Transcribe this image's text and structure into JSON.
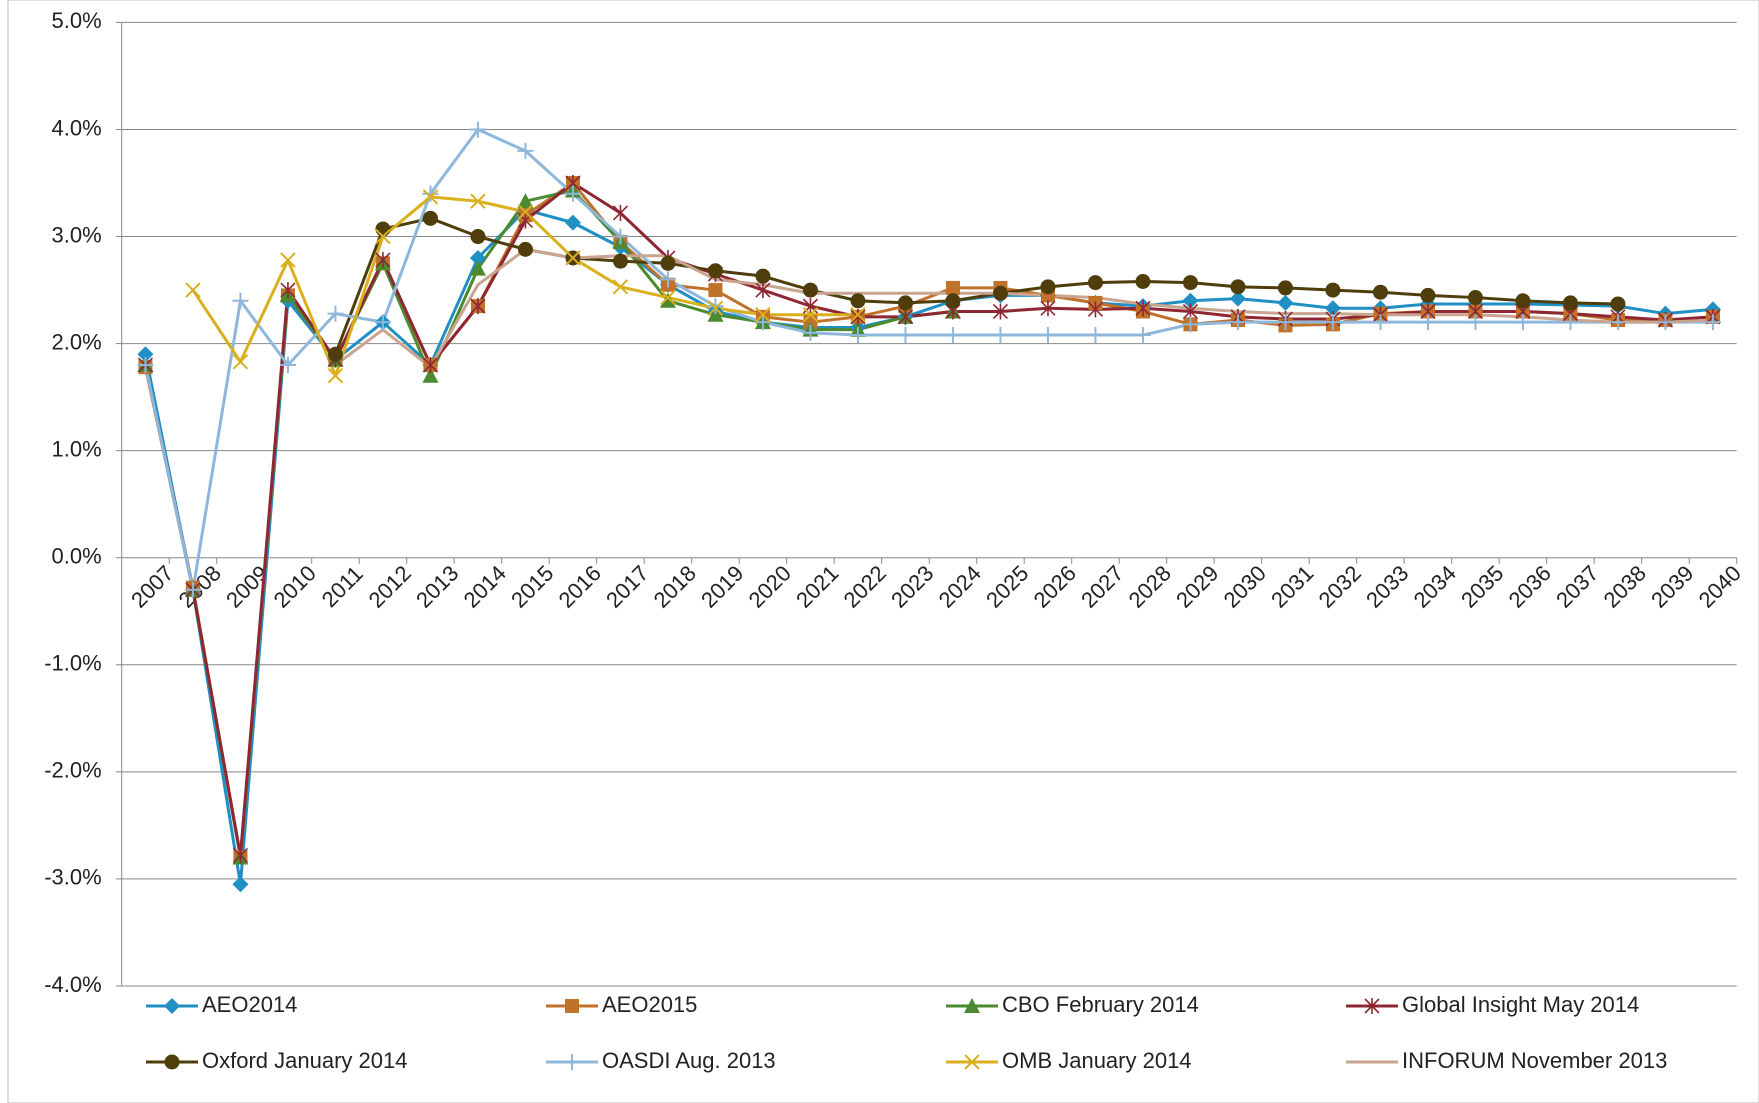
{
  "chart_data": {
    "type": "line",
    "categories": [
      "2007",
      "2008",
      "2009",
      "2010",
      "2011",
      "2012",
      "2013",
      "2014",
      "2015",
      "2016",
      "2017",
      "2018",
      "2019",
      "2020",
      "2021",
      "2022",
      "2023",
      "2024",
      "2025",
      "2026",
      "2027",
      "2028",
      "2029",
      "2030",
      "2031",
      "2032",
      "2033",
      "2034",
      "2035",
      "2036",
      "2037",
      "2038",
      "2039",
      "2040"
    ],
    "ylim": [
      -4,
      5
    ],
    "yticks": [
      {
        "value": -4,
        "label": "-4.0%"
      },
      {
        "value": -3,
        "label": "-3.0%"
      },
      {
        "value": -2,
        "label": "-2.0%"
      },
      {
        "value": -1,
        "label": "-1.0%"
      },
      {
        "value": 0,
        "label": "0.0%"
      },
      {
        "value": 1,
        "label": "1.0%"
      },
      {
        "value": 2,
        "label": "2.0%"
      },
      {
        "value": 3,
        "label": "3.0%"
      },
      {
        "value": 4,
        "label": "4.0%"
      },
      {
        "value": 5,
        "label": "5.0%"
      }
    ],
    "grid": true,
    "legend": "bottom",
    "series": [
      {
        "name": "AEO2014",
        "color": "#1f8fc4",
        "marker": "diamond",
        "values": [
          1.9,
          -0.3,
          -3.05,
          2.4,
          1.85,
          2.2,
          1.8,
          2.8,
          3.25,
          3.13,
          2.9,
          2.55,
          2.3,
          2.2,
          2.15,
          2.15,
          2.25,
          2.4,
          2.45,
          2.45,
          2.38,
          2.35,
          2.4,
          2.42,
          2.38,
          2.33,
          2.33,
          2.37,
          2.37,
          2.37,
          2.36,
          2.35,
          2.28,
          2.32
        ]
      },
      {
        "name": "AEO2015",
        "color": "#c0722a",
        "marker": "square",
        "values": [
          1.78,
          -0.28,
          -2.8,
          2.45,
          1.85,
          2.75,
          1.8,
          2.35,
          3.2,
          3.5,
          2.95,
          2.55,
          2.5,
          2.25,
          2.2,
          2.25,
          2.35,
          2.52,
          2.52,
          2.45,
          2.38,
          2.3,
          2.18,
          2.22,
          2.17,
          2.18,
          2.28,
          2.3,
          2.3,
          2.3,
          2.28,
          2.22,
          2.22,
          2.25
        ]
      },
      {
        "name": "CBO February 2014",
        "color": "#4b8a2e",
        "marker": "triangle",
        "values": [
          1.8,
          -0.3,
          -2.8,
          2.45,
          1.85,
          2.75,
          1.7,
          2.7,
          3.33,
          3.43,
          2.95,
          2.4,
          2.27,
          2.2,
          2.13,
          2.13,
          2.25,
          2.3,
          null,
          null,
          null,
          null,
          null,
          null,
          null,
          null,
          null,
          null,
          null,
          null,
          null,
          null,
          null,
          null
        ]
      },
      {
        "name": "Global Insight May 2014",
        "color": "#8e2733",
        "marker": "asterisk",
        "values": [
          1.8,
          -0.3,
          -2.78,
          2.5,
          1.85,
          2.78,
          1.8,
          2.35,
          3.15,
          3.5,
          3.22,
          2.8,
          2.65,
          2.5,
          2.35,
          2.25,
          2.25,
          2.3,
          2.3,
          2.33,
          2.32,
          2.33,
          2.3,
          2.25,
          2.23,
          2.23,
          2.27,
          2.3,
          2.3,
          2.3,
          2.28,
          2.25,
          2.22,
          2.25
        ]
      },
      {
        "name": "Oxford January 2014",
        "color": "#4f3d0c",
        "marker": "circle",
        "values": [
          null,
          null,
          null,
          null,
          1.9,
          3.07,
          3.17,
          3.0,
          2.88,
          2.8,
          2.77,
          2.75,
          2.68,
          2.63,
          2.5,
          2.4,
          2.38,
          2.4,
          2.47,
          2.53,
          2.57,
          2.58,
          2.57,
          2.53,
          2.52,
          2.5,
          2.48,
          2.45,
          2.43,
          2.4,
          2.38,
          2.37,
          null,
          null
        ]
      },
      {
        "name": "OASDI Aug. 2013",
        "color": "#8fb7dc",
        "marker": "plus",
        "values": [
          1.8,
          -0.3,
          2.4,
          1.8,
          2.28,
          2.2,
          3.4,
          4.0,
          3.8,
          3.4,
          3.0,
          2.6,
          2.35,
          2.2,
          2.1,
          2.08,
          2.08,
          2.08,
          2.08,
          2.08,
          2.08,
          2.08,
          2.18,
          2.2,
          2.2,
          2.2,
          2.2,
          2.2,
          2.2,
          2.2,
          2.2,
          2.2,
          2.2,
          2.2
        ]
      },
      {
        "name": "OMB January 2014",
        "color": "#d9b01c",
        "marker": "x",
        "values": [
          null,
          2.5,
          1.83,
          2.78,
          1.7,
          3.0,
          3.37,
          3.33,
          3.23,
          2.8,
          2.53,
          2.43,
          2.33,
          2.27,
          2.27,
          2.27,
          null,
          null,
          null,
          null,
          null,
          null,
          null,
          null,
          null,
          null,
          null,
          null,
          null,
          null,
          null,
          null,
          null,
          null
        ]
      },
      {
        "name": "INFORUM November 2013",
        "color": "#c9a48e",
        "marker": "none",
        "values": [
          null,
          null,
          null,
          null,
          1.8,
          2.13,
          1.78,
          2.55,
          2.88,
          2.8,
          2.82,
          2.82,
          2.6,
          2.55,
          2.47,
          2.47,
          2.47,
          2.47,
          2.47,
          2.45,
          2.43,
          2.37,
          2.33,
          2.3,
          2.28,
          2.28,
          2.27,
          2.27,
          2.27,
          2.25,
          2.22,
          2.2,
          2.2,
          2.22
        ]
      }
    ]
  }
}
